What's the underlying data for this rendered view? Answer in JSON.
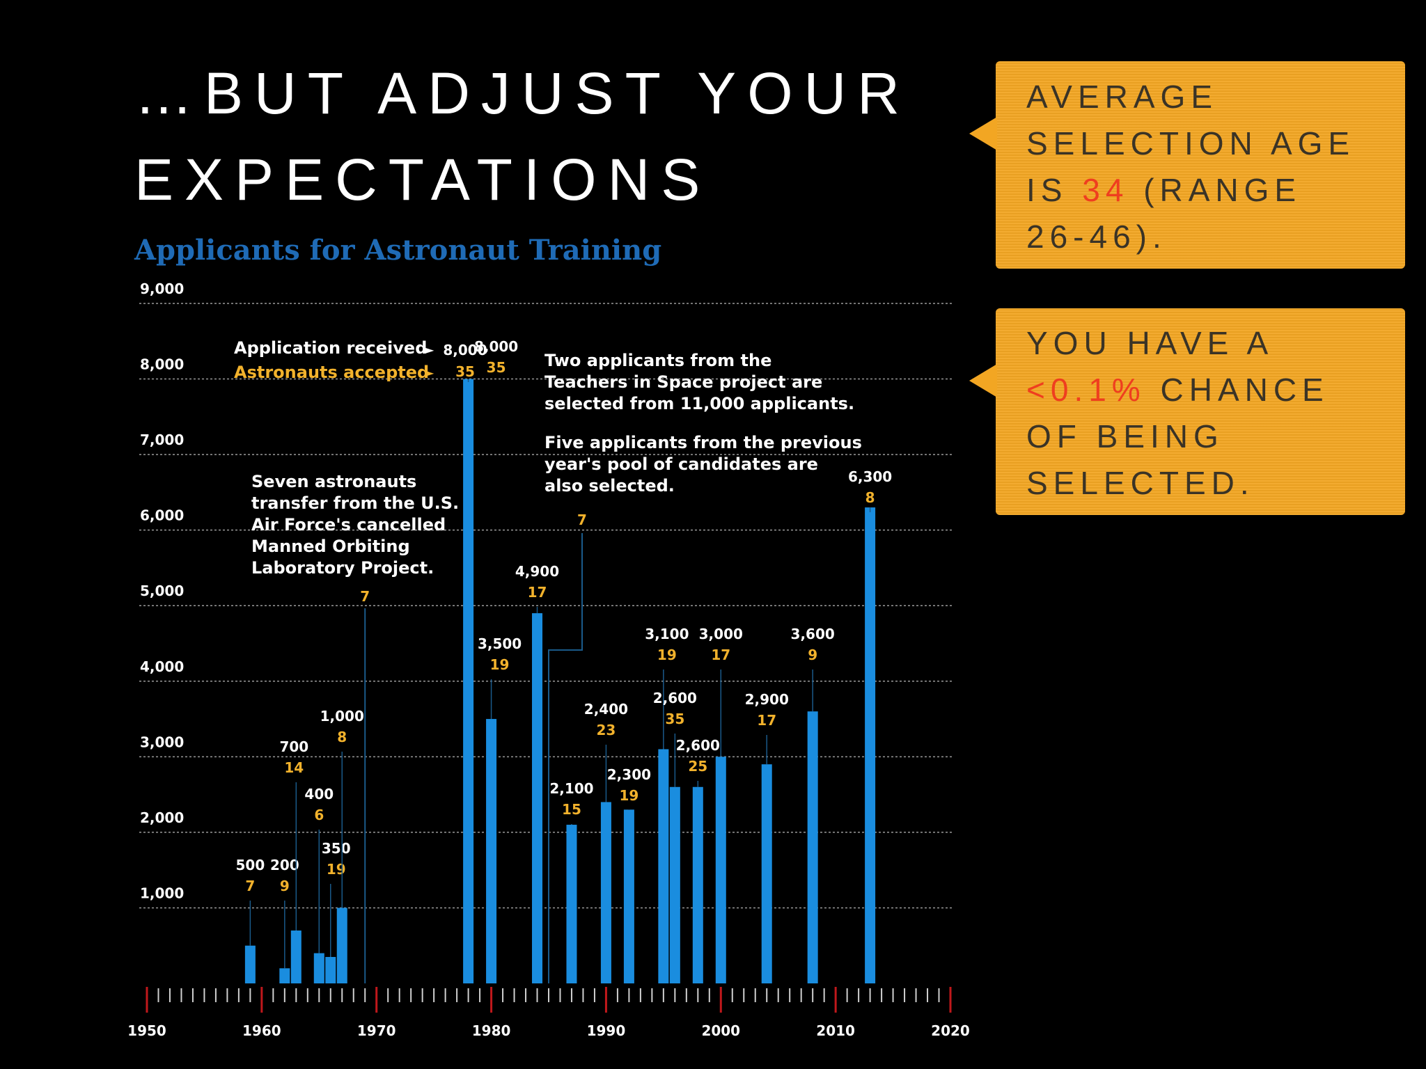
{
  "slide": {
    "title_line1": "…BUT ADJUST YOUR",
    "title_line2": "EXPECTATIONS"
  },
  "callouts": {
    "age": {
      "line1": "AVERAGE",
      "line2": "SELECTION AGE",
      "line3_pre": "IS ",
      "line3_highlight": "34",
      "line3_post": " (RANGE",
      "line4": "26-46)."
    },
    "chance": {
      "line1": "YOU HAVE A",
      "line2_highlight": "<0.1%",
      "line2_post": " CHANCE",
      "line3": "OF BEING",
      "line4": "SELECTED."
    }
  },
  "colors": {
    "bar": "#1a8ddf",
    "accepted": "#f2b22c",
    "callout_bg": "#f2a623",
    "highlight": "#ef3e1f",
    "chart_title": "#1f6bb6",
    "decade_tick": "#c0181b"
  },
  "chart_data": {
    "type": "bar",
    "title": "Applicants for Astronaut Training",
    "xlabel": "",
    "ylabel": "",
    "xlim": [
      1950,
      2020
    ],
    "ylim": [
      0,
      9000
    ],
    "y_ticks": [
      1000,
      2000,
      3000,
      4000,
      5000,
      6000,
      7000,
      8000,
      9000
    ],
    "y_tick_labels": [
      "1,000",
      "2,000",
      "3,000",
      "4,000",
      "5,000",
      "6,000",
      "7,000",
      "8,000",
      "9,000"
    ],
    "x_ticks": [
      1950,
      1960,
      1970,
      1980,
      1990,
      2000,
      2010,
      2020
    ],
    "x_tick_labels": [
      "1950",
      "1960",
      "1970",
      "1980",
      "1990",
      "2000",
      "2010",
      "2020"
    ],
    "legend": {
      "applications": "Application received",
      "accepted": "Astronauts accepted",
      "example_applications": "8,000",
      "example_accepted": "35"
    },
    "series": [
      {
        "name": "Application received",
        "values": [
          500,
          200,
          700,
          400,
          350,
          1000,
          8000,
          3500,
          4900,
          2100,
          2400,
          2300,
          3100,
          2600,
          2600,
          3000,
          2900,
          3600,
          6300
        ]
      },
      {
        "name": "Astronauts accepted",
        "values": [
          7,
          9,
          14,
          6,
          19,
          8,
          35,
          19,
          17,
          15,
          23,
          19,
          19,
          35,
          25,
          17,
          17,
          9,
          8
        ]
      }
    ],
    "x": [
      1959,
      1962,
      1963,
      1965,
      1966,
      1967,
      1978,
      1980,
      1984,
      1987,
      1990,
      1992,
      1995,
      1996,
      1998,
      2000,
      2004,
      2008,
      2013
    ],
    "application_labels": [
      "500",
      "200",
      "700",
      "400",
      "350",
      "1,000",
      "8,000",
      "3,500",
      "4,900",
      "2,100",
      "2,400",
      "2,300",
      "3,100",
      "2,600",
      "2,600",
      "3,000",
      "2,900",
      "3,600",
      "6,300"
    ],
    "accepted_labels": [
      "7",
      "9",
      "14",
      "6",
      "19",
      "8",
      "35",
      "19",
      "17",
      "15",
      "23",
      "19",
      "19",
      "35",
      "25",
      "17",
      "17",
      "9",
      "8"
    ],
    "special_entries": [
      {
        "year": 1969,
        "accepted": "7"
      },
      {
        "year": 1985,
        "accepted": "7"
      }
    ],
    "annotations": {
      "mol": [
        "Seven astronauts",
        "transfer from the U.S.",
        "Air Force's cancelled",
        "Manned Orbiting",
        "Laboratory Project."
      ],
      "teachers": [
        "Two applicants from the",
        "Teachers in Space project are",
        "selected from 11,000 applicants."
      ],
      "previous_pool": [
        "Five applicants from the previous",
        "year's pool of candidates are",
        "also selected."
      ]
    }
  }
}
